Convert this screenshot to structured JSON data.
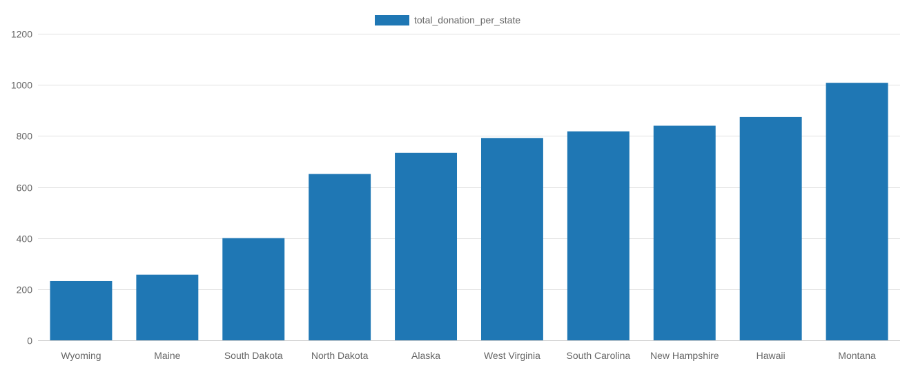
{
  "chart_data": {
    "type": "bar",
    "categories": [
      "Wyoming",
      "Maine",
      "South Dakota",
      "North Dakota",
      "Alaska",
      "West Virginia",
      "South Carolina",
      "New Hampshire",
      "Hawaii",
      "Montana"
    ],
    "series": [
      {
        "name": "total_donation_per_state",
        "values": [
          232,
          257,
          400,
          651,
          734,
          792,
          818,
          840,
          874,
          1008
        ]
      }
    ],
    "yticks": [
      "0",
      "200",
      "400",
      "600",
      "800",
      "1000",
      "1200"
    ],
    "ylim": [
      0,
      1200
    ],
    "grid": true,
    "legend_position": "top-center",
    "bar_color": "#1f77b4"
  }
}
